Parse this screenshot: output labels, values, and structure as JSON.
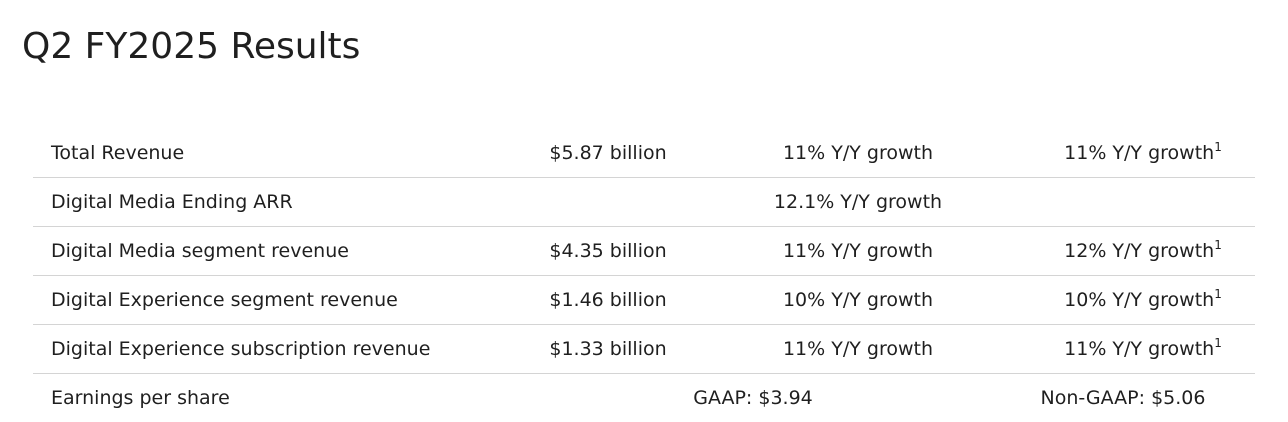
{
  "title": "Q2 FY2025 Results",
  "rows": [
    {
      "label": "Total Revenue",
      "value": "$5.87 billion",
      "growth": "11% Y/Y growth",
      "cc_growth": "11% Y/Y growth",
      "footnote": "1"
    },
    {
      "label": "Digital Media Ending ARR",
      "growth": "12.1% Y/Y growth"
    },
    {
      "label": "Digital Media segment revenue",
      "value": "$4.35 billion",
      "growth": "11% Y/Y growth",
      "cc_growth": "12% Y/Y growth",
      "footnote": "1"
    },
    {
      "label": "Digital Experience segment revenue",
      "value": "$1.46 billion",
      "growth": "10% Y/Y growth",
      "cc_growth": "10% Y/Y growth",
      "footnote": "1"
    },
    {
      "label": "Digital Experience subscription revenue",
      "value": "$1.33 billion",
      "growth": "11% Y/Y growth",
      "cc_growth": "11% Y/Y growth",
      "footnote": "1"
    },
    {
      "label": "Earnings per share",
      "gaap": "GAAP: $3.94",
      "non_gaap": "Non-GAAP: $5.06"
    }
  ]
}
